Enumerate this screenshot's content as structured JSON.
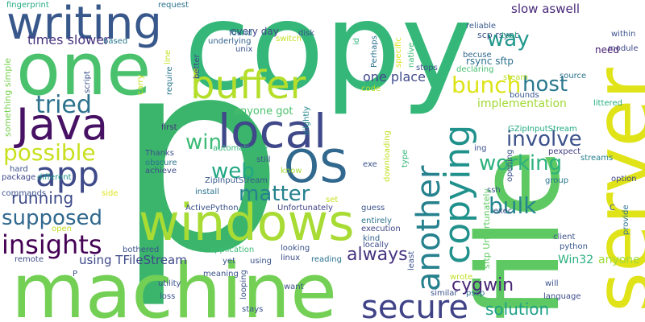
{
  "words": [
    {
      "text": "p",
      "color": "#3bb56c"
    },
    {
      "text": "copy",
      "color": "#35b779"
    },
    {
      "text": "file",
      "color": "#5ec962"
    },
    {
      "text": "server",
      "color": "#dfe318"
    },
    {
      "text": "machine",
      "color": "#73d055"
    },
    {
      "text": "one",
      "color": "#4ac16d"
    },
    {
      "text": "windows",
      "color": "#a8db34"
    },
    {
      "text": "writing",
      "color": "#38588c"
    },
    {
      "text": "Java",
      "color": "#471164"
    },
    {
      "text": "local",
      "color": "#3f4889"
    },
    {
      "text": "OS",
      "color": "#31688e"
    },
    {
      "text": "buffer",
      "color": "#b5de2b"
    },
    {
      "text": "app",
      "color": "#3e4a89"
    },
    {
      "text": "secure",
      "color": "#404387"
    },
    {
      "text": "copying",
      "color": "#21918c"
    },
    {
      "text": "another",
      "color": "#26818e"
    },
    {
      "text": "tried",
      "color": "#2c728e"
    },
    {
      "text": "possible",
      "color": "#c8e020"
    },
    {
      "text": "insights",
      "color": "#440154"
    },
    {
      "text": "supposed",
      "color": "#31688e"
    },
    {
      "text": "web",
      "color": "#22a785"
    },
    {
      "text": "matter",
      "color": "#26828e"
    },
    {
      "text": "bunch",
      "color": "#dde318"
    },
    {
      "text": "way",
      "color": "#1f988b"
    },
    {
      "text": "host",
      "color": "#2a788e"
    },
    {
      "text": "working",
      "color": "#2db27d"
    },
    {
      "text": "involve",
      "color": "#3b528b"
    },
    {
      "text": "win",
      "color": "#3bbb75"
    },
    {
      "text": "bulk",
      "color": "#25858e"
    },
    {
      "text": "running",
      "color": "#3e4c8a"
    },
    {
      "text": "solution",
      "color": "#1fa088"
    },
    {
      "text": "cygwin",
      "color": "#482576"
    },
    {
      "text": "always",
      "color": "#463480"
    },
    {
      "text": "times slower",
      "color": "#46337f"
    },
    {
      "text": "implementation",
      "color": "#a2da37"
    },
    {
      "text": "one place",
      "color": "#3f4a8a"
    },
    {
      "text": "slow aswell",
      "color": "#482878"
    },
    {
      "text": "scp rsync",
      "color": "#3a538b"
    },
    {
      "text": "rsync sftp",
      "color": "#2d708e"
    },
    {
      "text": "anyone got",
      "color": "#4ac16d"
    },
    {
      "text": "using TFileStream",
      "color": "#3e4989"
    },
    {
      "text": "Win32",
      "color": "#29af7f"
    },
    {
      "text": "anyone",
      "color": "#a0da39"
    },
    {
      "text": "every day",
      "color": "#414487"
    },
    {
      "text": "underlying",
      "color": "#33638d"
    },
    {
      "text": "unix",
      "color": "#3b528b"
    },
    {
      "text": "found",
      "color": "#297a8e"
    },
    {
      "text": "disk",
      "color": "#3b528b"
    },
    {
      "text": "fingerprint",
      "color": "#25ab82"
    },
    {
      "text": "request",
      "color": "#2c728e"
    },
    {
      "text": "based",
      "color": "#2a778e"
    },
    {
      "text": "script",
      "color": "#3a538b"
    },
    {
      "text": "carry",
      "color": "#c8e020"
    },
    {
      "text": "line",
      "color": "#c2df23"
    },
    {
      "text": "require",
      "color": "#2a778e"
    },
    {
      "text": "better",
      "color": "#3f4889"
    },
    {
      "text": "slightly",
      "color": "#24868e"
    },
    {
      "text": "something simple",
      "color": "#7ad151"
    },
    {
      "text": "switch",
      "color": "#c5e021"
    },
    {
      "text": "id",
      "color": "#31b57b"
    },
    {
      "text": "Perhaps",
      "color": "#2c728e"
    },
    {
      "text": "specific",
      "color": "#dde318"
    },
    {
      "text": "native",
      "color": "#3dbc74"
    },
    {
      "text": "stops",
      "color": "#3b528b"
    },
    {
      "text": "becuse",
      "color": "#31688e"
    },
    {
      "text": "declaring",
      "color": "#44bf70"
    },
    {
      "text": "reliable",
      "color": "#38598c"
    },
    {
      "text": "tool",
      "color": "#29af7f"
    },
    {
      "text": "within",
      "color": "#3b528b"
    },
    {
      "text": "module",
      "color": "#3f4889"
    },
    {
      "text": "need",
      "color": "#482173"
    },
    {
      "text": "steam",
      "color": "#b8de29"
    },
    {
      "text": "source",
      "color": "#2c728e"
    },
    {
      "text": "bounds",
      "color": "#38588c"
    },
    {
      "text": "littered",
      "color": "#26ad81"
    },
    {
      "text": "code",
      "color": "#b8de29"
    },
    {
      "text": "first",
      "color": "#46337f"
    },
    {
      "text": "Thanks",
      "color": "#3b528b"
    },
    {
      "text": "obscure",
      "color": "#2c728e"
    },
    {
      "text": "achieve",
      "color": "#3e4c8a"
    },
    {
      "text": "automatically",
      "color": "#35b779"
    },
    {
      "text": "know",
      "color": "#a5db36"
    },
    {
      "text": "still",
      "color": "#3b528b"
    },
    {
      "text": "GZipInputStream",
      "color": "#24aa83"
    },
    {
      "text": "ing",
      "color": "#3b528b"
    },
    {
      "text": "pexpect",
      "color": "#433e85"
    },
    {
      "text": "opening",
      "color": "#3b528b"
    },
    {
      "text": "streams",
      "color": "#277f8e"
    },
    {
      "text": "option",
      "color": "#3f4889"
    },
    {
      "text": "exe",
      "color": "#3b528b"
    },
    {
      "text": "downloading",
      "color": "#c2df23"
    },
    {
      "text": "type",
      "color": "#35b779"
    },
    {
      "text": "group",
      "color": "#2a778e"
    },
    {
      "text": "hard",
      "color": "#3b528b"
    },
    {
      "text": "different",
      "color": "#1f958b"
    },
    {
      "text": "package",
      "color": "#3f4889"
    },
    {
      "text": "commands",
      "color": "#3b528b"
    },
    {
      "text": "side",
      "color": "#dde318"
    },
    {
      "text": "ZipInputStream",
      "color": "#38598c"
    },
    {
      "text": "install",
      "color": "#2c728e"
    },
    {
      "text": "ActivePython",
      "color": "#3b528b"
    },
    {
      "text": "Unfortunately",
      "color": "#414487"
    },
    {
      "text": "set",
      "color": "#c8e020"
    },
    {
      "text": "guess",
      "color": "#3b528b"
    },
    {
      "text": "entirely",
      "color": "#2c728e"
    },
    {
      "text": "execution",
      "color": "#414487"
    },
    {
      "text": "kind",
      "color": "#33638d"
    },
    {
      "text": "locally",
      "color": "#3e4c8a"
    },
    {
      "text": "least",
      "color": "#3b528b"
    },
    {
      "text": "exec",
      "color": "#3b528b"
    },
    {
      "text": "ssh",
      "color": "#3b528b"
    },
    {
      "text": "sftp Unfortunately",
      "color": "#5ec962"
    },
    {
      "text": "C",
      "color": "#3b528b"
    },
    {
      "text": "provide",
      "color": "#2c728e"
    },
    {
      "text": "client",
      "color": "#3b528b"
    },
    {
      "text": "python",
      "color": "#38598c"
    },
    {
      "text": "open",
      "color": "#c2df23"
    },
    {
      "text": "remote",
      "color": "#3e4c8a"
    },
    {
      "text": "application",
      "color": "#3bbb75"
    },
    {
      "text": "bothered",
      "color": "#3b528b"
    },
    {
      "text": "yet",
      "color": "#3b528b"
    },
    {
      "text": "using",
      "color": "#3b528b"
    },
    {
      "text": "looking",
      "color": "#3b528b"
    },
    {
      "text": "linux",
      "color": "#3e4c8a"
    },
    {
      "text": "reading",
      "color": "#2c728e"
    },
    {
      "text": "utility",
      "color": "#3b528b"
    },
    {
      "text": "meaning",
      "color": "#3b528b"
    },
    {
      "text": "looping",
      "color": "#3b528b"
    },
    {
      "text": "want",
      "color": "#3b528b"
    },
    {
      "text": "loss",
      "color": "#3b528b"
    },
    {
      "text": "stays",
      "color": "#3b528b"
    },
    {
      "text": "similar",
      "color": "#3b528b"
    },
    {
      "text": "wrote",
      "color": "#c2df23"
    },
    {
      "text": "pscp",
      "color": "#2c728e"
    },
    {
      "text": "will",
      "color": "#3b528b"
    },
    {
      "text": "language",
      "color": "#3e4c8a"
    },
    {
      "text": "P",
      "color": "#3b528b"
    }
  ]
}
